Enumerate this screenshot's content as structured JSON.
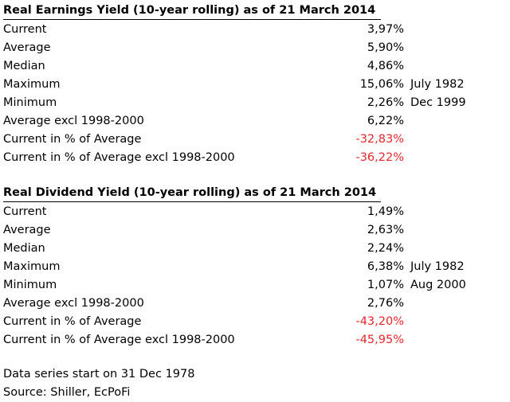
{
  "colors": {
    "negative": "#e8262b",
    "text": "#000000"
  },
  "sections": [
    {
      "title": "Real Earnings Yield (10-year rolling) as of 21 March 2014",
      "rows": [
        {
          "label": "Current",
          "value": "3,97%",
          "date": ""
        },
        {
          "label": "Average",
          "value": "5,90%",
          "date": ""
        },
        {
          "label": "Median",
          "value": "4,86%",
          "date": ""
        },
        {
          "label": "Maximum",
          "value": "15,06%",
          "date": "July 1982"
        },
        {
          "label": "Minimum",
          "value": "2,26%",
          "date": "Dec 1999"
        },
        {
          "label": "Average excl 1998-2000",
          "value": "6,22%",
          "date": ""
        },
        {
          "label": "Current in % of Average",
          "value": "-32,83%",
          "date": ""
        },
        {
          "label": "Current in % of Average excl 1998-2000",
          "value": "-36,22%",
          "date": ""
        }
      ]
    },
    {
      "title": "Real Dividend Yield (10-year rolling) as of 21 March 2014",
      "rows": [
        {
          "label": "Current",
          "value": "1,49%",
          "date": ""
        },
        {
          "label": "Average",
          "value": "2,63%",
          "date": ""
        },
        {
          "label": "Median",
          "value": "2,24%",
          "date": ""
        },
        {
          "label": "Maximum",
          "value": "6,38%",
          "date": "July 1982"
        },
        {
          "label": "Minimum",
          "value": "1,07%",
          "date": "Aug 2000"
        },
        {
          "label": "Average excl 1998-2000",
          "value": "2,76%",
          "date": ""
        },
        {
          "label": "Current in % of Average",
          "value": "-43,20%",
          "date": ""
        },
        {
          "label": "Current in % of Average excl 1998-2000",
          "value": "-45,95%",
          "date": ""
        }
      ]
    }
  ],
  "footer": {
    "series_start": "Data series start on 31 Dec 1978",
    "source": "Source: Shiller, EcPoFi"
  }
}
